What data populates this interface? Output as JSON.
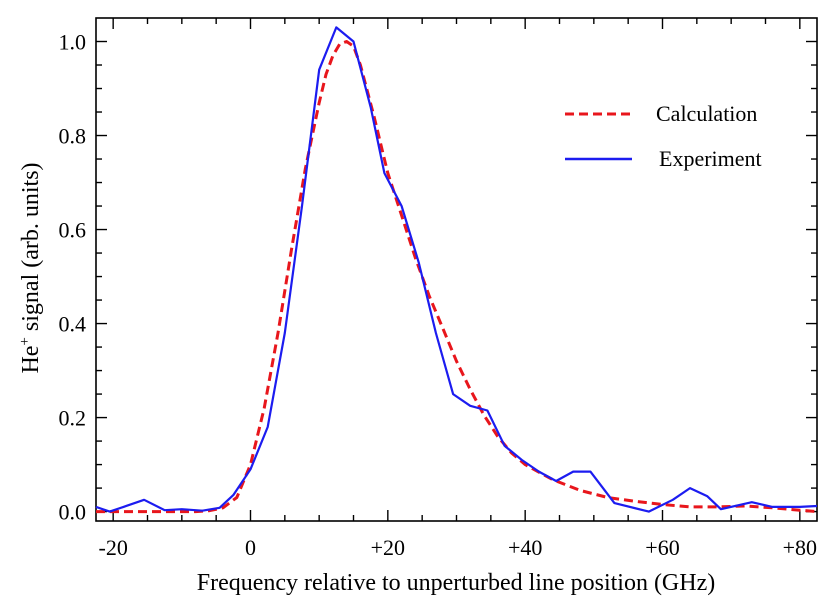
{
  "chart_data": {
    "type": "line",
    "xlabel": "Frequency relative to unperturbed line position (GHz)",
    "ylabel": "He",
    "ylabel_superscript": "+",
    "ylabel_rest": " signal (arb. units)",
    "xlim": [
      -22.5,
      82.5
    ],
    "ylim": [
      -0.02,
      1.05
    ],
    "x_ticks": [
      {
        "value": -20,
        "label": "-20"
      },
      {
        "value": 0,
        "label": "0"
      },
      {
        "value": 20,
        "label": "+20"
      },
      {
        "value": 40,
        "label": "+40"
      },
      {
        "value": 60,
        "label": "+60"
      },
      {
        "value": 80,
        "label": "+80"
      }
    ],
    "y_ticks": [
      {
        "value": 0.0,
        "label": "0.0"
      },
      {
        "value": 0.2,
        "label": "0.2"
      },
      {
        "value": 0.4,
        "label": "0.4"
      },
      {
        "value": 0.6,
        "label": "0.6"
      },
      {
        "value": 0.8,
        "label": "0.8"
      },
      {
        "value": 1.0,
        "label": "1.0"
      }
    ],
    "legend_position": "top-right",
    "series": [
      {
        "name": "Calculation",
        "style": "dashed",
        "color": "#e8161c",
        "x": [
          -22.5,
          -20,
          -17,
          -14,
          -11,
          -8,
          -6,
          -4,
          -2,
          0,
          2,
          4,
          6,
          8,
          10,
          11,
          12,
          13,
          14,
          15,
          16,
          18,
          20,
          22,
          24,
          26,
          28,
          30,
          32,
          34,
          36,
          38,
          40,
          44,
          48,
          52,
          56,
          60,
          64,
          68,
          72,
          76,
          80,
          82.5
        ],
        "y": [
          0.0,
          0.0,
          0.0,
          0.0,
          0.0,
          0.0,
          0.002,
          0.008,
          0.03,
          0.1,
          0.22,
          0.38,
          0.56,
          0.73,
          0.87,
          0.93,
          0.97,
          0.995,
          1.0,
          0.99,
          0.95,
          0.84,
          0.72,
          0.63,
          0.54,
          0.46,
          0.39,
          0.32,
          0.26,
          0.205,
          0.16,
          0.125,
          0.1,
          0.068,
          0.045,
          0.03,
          0.022,
          0.015,
          0.01,
          0.01,
          0.012,
          0.008,
          0.003,
          0.0
        ]
      },
      {
        "name": "Experiment",
        "style": "solid",
        "color": "#1c1cf0",
        "x": [
          -22.5,
          -20.5,
          -18.5,
          -15.5,
          -12.5,
          -10,
          -7,
          -4.5,
          -2.5,
          0,
          2.5,
          5,
          7.5,
          10,
          12.5,
          15,
          17.5,
          19.5,
          22,
          24.5,
          27,
          29.5,
          32,
          34.5,
          37,
          39.5,
          42,
          44.5,
          47,
          49.5,
          53,
          58,
          61.5,
          64,
          66.5,
          68.5,
          73,
          76,
          80,
          82.5
        ],
        "y": [
          0.01,
          0.0,
          0.01,
          0.025,
          0.003,
          0.005,
          0.002,
          0.008,
          0.035,
          0.09,
          0.18,
          0.38,
          0.65,
          0.94,
          1.03,
          1.0,
          0.86,
          0.72,
          0.65,
          0.53,
          0.38,
          0.25,
          0.225,
          0.215,
          0.14,
          0.11,
          0.085,
          0.065,
          0.085,
          0.085,
          0.018,
          0.0,
          0.025,
          0.05,
          0.033,
          0.005,
          0.02,
          0.01,
          0.01,
          0.012
        ]
      }
    ]
  }
}
